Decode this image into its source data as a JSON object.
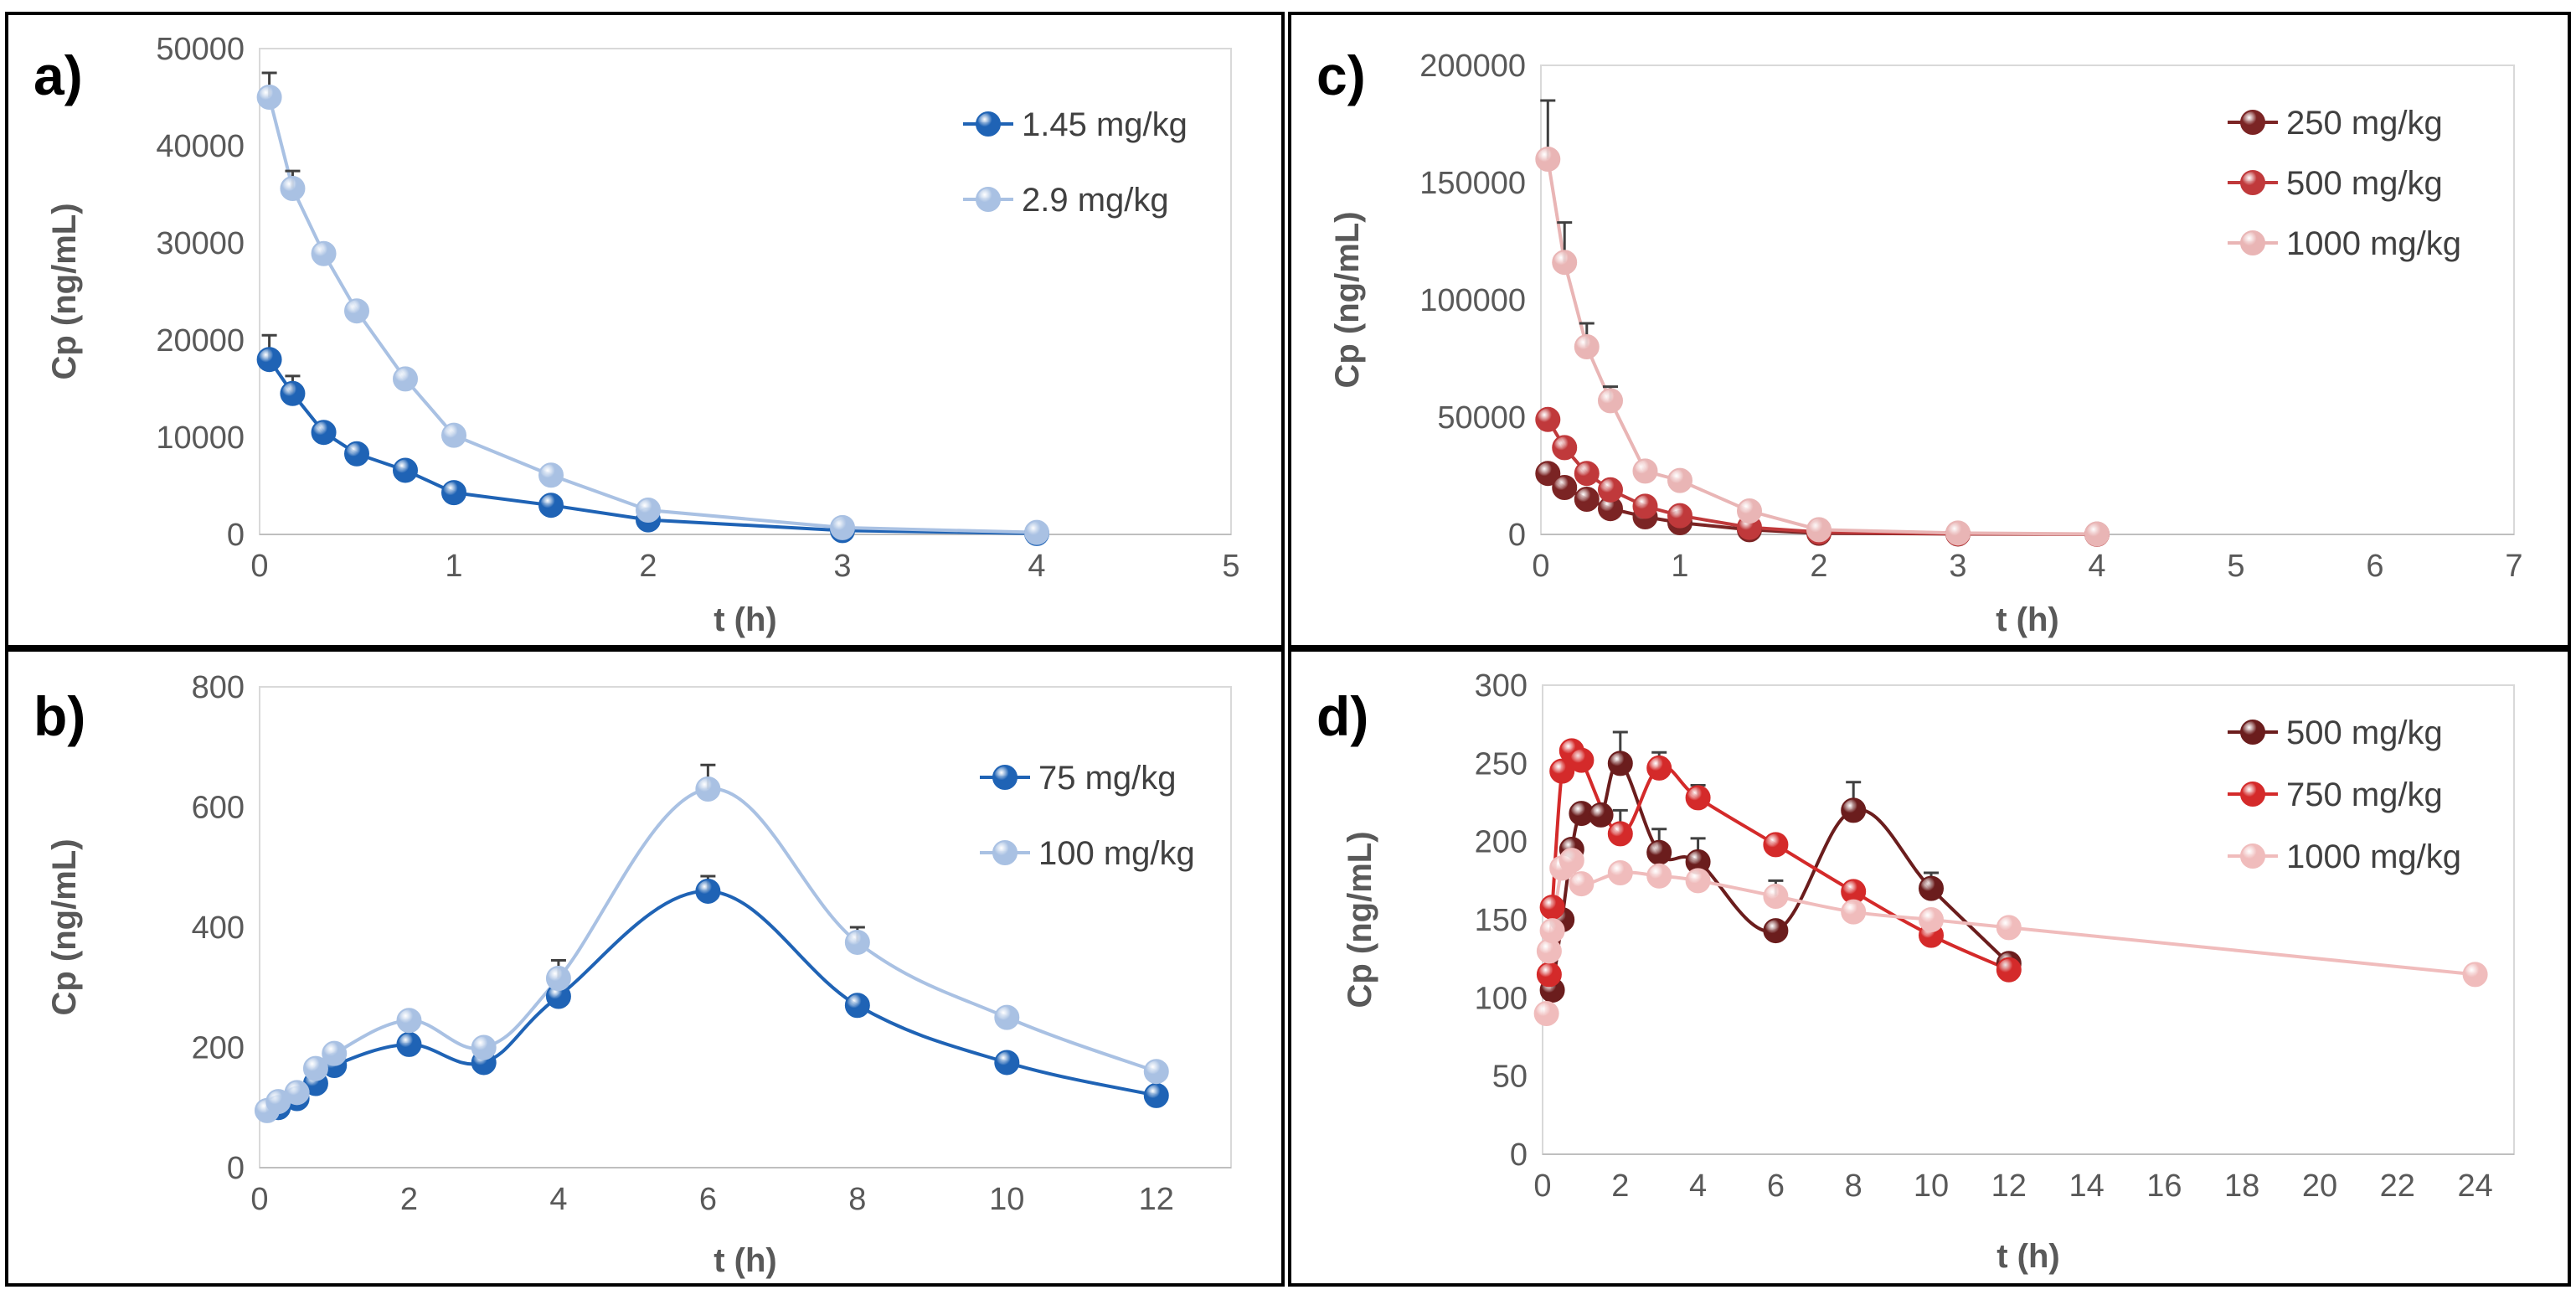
{
  "chart_data": [
    {
      "panel": "a)",
      "type": "line",
      "title": "",
      "xlabel": "t (h)",
      "ylabel": "Cp (ng/mL)",
      "xlim": [
        0,
        5
      ],
      "ylim": [
        0,
        50000
      ],
      "xticks": [
        0,
        1,
        2,
        3,
        4,
        5
      ],
      "yticks": [
        0,
        10000,
        20000,
        30000,
        40000,
        50000
      ],
      "ytick_labels": [
        "0",
        "10000",
        "20000",
        "30000",
        "40000",
        "50000"
      ],
      "xtick_labels": [
        "0",
        "1",
        "2",
        "3",
        "4",
        "5"
      ],
      "smooth": false,
      "legend_position": "top-right",
      "series": [
        {
          "name": "1.45 mg/kg",
          "color": "#1f63b5",
          "x": [
            0.05,
            0.17,
            0.33,
            0.5,
            0.75,
            1,
            1.5,
            2,
            3,
            4
          ],
          "y": [
            18000,
            14500,
            10500,
            8300,
            6600,
            4300,
            3000,
            1500,
            400,
            100
          ],
          "err": [
            2500,
            1800,
            0,
            0,
            0,
            0,
            0,
            0,
            0,
            0
          ]
        },
        {
          "name": "2.9 mg/kg",
          "color": "#a9c1e3",
          "x": [
            0.05,
            0.17,
            0.33,
            0.5,
            0.75,
            1,
            1.5,
            2,
            3,
            4
          ],
          "y": [
            45000,
            35600,
            28900,
            23000,
            16000,
            10200,
            6100,
            2500,
            700,
            200
          ],
          "err": [
            2500,
            1800,
            0,
            0,
            0,
            0,
            0,
            0,
            0,
            0
          ]
        }
      ]
    },
    {
      "panel": "b)",
      "type": "line",
      "title": "",
      "xlabel": "t (h)",
      "ylabel": "Cp (ng/mL)",
      "xlim": [
        0,
        13
      ],
      "ylim": [
        0,
        800
      ],
      "xticks": [
        0,
        2,
        4,
        6,
        8,
        10,
        12
      ],
      "yticks": [
        0,
        200,
        400,
        600,
        800
      ],
      "ytick_labels": [
        "0",
        "200",
        "400",
        "600",
        "800"
      ],
      "xtick_labels": [
        "0",
        "2",
        "4",
        "6",
        "8",
        "10",
        "12"
      ],
      "smooth": true,
      "legend_position": "top-right",
      "series": [
        {
          "name": "75 mg/kg",
          "color": "#1f63b5",
          "x": [
            0.25,
            0.5,
            0.75,
            1,
            2,
            3,
            4,
            6,
            8,
            10,
            12
          ],
          "y": [
            100,
            115,
            140,
            170,
            205,
            175,
            285,
            460,
            270,
            175,
            120
          ],
          "err": [
            0,
            0,
            0,
            0,
            0,
            0,
            0,
            25,
            0,
            0,
            0
          ]
        },
        {
          "name": "100 mg/kg",
          "color": "#a9c1e3",
          "x": [
            0.1,
            0.25,
            0.5,
            0.75,
            1,
            2,
            3,
            4,
            6,
            8,
            10,
            12
          ],
          "y": [
            95,
            110,
            125,
            165,
            190,
            245,
            200,
            315,
            630,
            375,
            250,
            160
          ],
          "err": [
            0,
            0,
            0,
            0,
            0,
            0,
            0,
            30,
            40,
            25,
            0,
            0
          ]
        }
      ]
    },
    {
      "panel": "c)",
      "type": "line",
      "title": "",
      "xlabel": "t (h)",
      "ylabel": "Cp (ng/mL)",
      "xlim": [
        0,
        7
      ],
      "ylim": [
        0,
        200000
      ],
      "xticks": [
        0,
        1,
        2,
        3,
        4,
        5,
        6,
        7
      ],
      "yticks": [
        0,
        50000,
        100000,
        150000,
        200000
      ],
      "ytick_labels": [
        "0",
        "50000",
        "100000",
        "150000",
        "200000"
      ],
      "xtick_labels": [
        "0",
        "1",
        "2",
        "3",
        "4",
        "5",
        "6",
        "7"
      ],
      "smooth": false,
      "legend_position": "top-right",
      "series": [
        {
          "name": "250 mg/kg",
          "color": "#7b2424",
          "x": [
            0.05,
            0.17,
            0.33,
            0.5,
            0.75,
            1,
            1.5,
            2,
            3,
            4
          ],
          "y": [
            26000,
            20000,
            15000,
            11000,
            7500,
            5000,
            2000,
            500,
            200,
            100
          ],
          "err": [
            0,
            0,
            0,
            0,
            0,
            0,
            0,
            0,
            0,
            0
          ]
        },
        {
          "name": "500 mg/kg",
          "color": "#c0393b",
          "x": [
            0.05,
            0.17,
            0.33,
            0.5,
            0.75,
            1,
            1.5,
            2,
            3,
            4
          ],
          "y": [
            49000,
            37000,
            26000,
            19000,
            12000,
            8000,
            3000,
            1000,
            300,
            100
          ],
          "err": [
            0,
            0,
            0,
            0,
            0,
            0,
            0,
            0,
            0,
            0
          ]
        },
        {
          "name": "1000 mg/kg",
          "color": "#e9b5b5",
          "x": [
            0.05,
            0.17,
            0.33,
            0.5,
            0.75,
            1,
            1.5,
            2,
            3,
            4
          ],
          "y": [
            160000,
            116000,
            80000,
            57000,
            27000,
            23000,
            10000,
            2000,
            600,
            200
          ],
          "err": [
            25000,
            17000,
            10000,
            6000,
            0,
            0,
            0,
            0,
            0,
            0
          ]
        }
      ]
    },
    {
      "panel": "d)",
      "type": "line",
      "title": "",
      "xlabel": "t (h)",
      "ylabel": "Cp (ng/mL)",
      "xlim": [
        0,
        25
      ],
      "ylim": [
        0,
        300
      ],
      "xticks": [
        0,
        2,
        4,
        6,
        8,
        10,
        12,
        14,
        16,
        18,
        20,
        22,
        24
      ],
      "yticks": [
        0,
        50,
        100,
        150,
        200,
        250,
        300
      ],
      "ytick_labels": [
        "0",
        "50",
        "100",
        "150",
        "200",
        "250",
        "300"
      ],
      "xtick_labels": [
        "0",
        "2",
        "4",
        "6",
        "8",
        "10",
        "12",
        "14",
        "16",
        "18",
        "20",
        "22",
        "24"
      ],
      "smooth": true,
      "legend_position": "top-right",
      "series": [
        {
          "name": "500 mg/kg",
          "color": "#6b1d1d",
          "x": [
            0.25,
            0.5,
            0.75,
            1,
            1.5,
            2,
            3,
            4,
            6,
            8,
            10,
            12
          ],
          "y": [
            105,
            150,
            195,
            218,
            217,
            250,
            193,
            187,
            143,
            220,
            170,
            122
          ],
          "err": [
            0,
            0,
            0,
            0,
            0,
            20,
            15,
            15,
            0,
            18,
            10,
            0
          ]
        },
        {
          "name": "750 mg/kg",
          "color": "#d42a2a",
          "x": [
            0.17,
            0.25,
            0.5,
            0.75,
            1,
            2,
            3,
            4,
            6,
            8,
            10,
            12
          ],
          "y": [
            115,
            158,
            245,
            258,
            252,
            205,
            247,
            228,
            198,
            168,
            140,
            118
          ],
          "err": [
            0,
            0,
            0,
            0,
            0,
            15,
            10,
            8,
            0,
            0,
            0,
            0
          ]
        },
        {
          "name": "1000 mg/kg",
          "color": "#f0bcbc",
          "x": [
            0.1,
            0.17,
            0.25,
            0.5,
            0.75,
            1,
            2,
            3,
            4,
            6,
            8,
            10,
            12,
            24
          ],
          "y": [
            90,
            130,
            143,
            183,
            188,
            173,
            180,
            178,
            175,
            165,
            155,
            150,
            145,
            115
          ],
          "err": [
            0,
            0,
            0,
            0,
            0,
            0,
            0,
            0,
            0,
            10,
            0,
            0,
            0,
            0
          ]
        }
      ]
    }
  ]
}
